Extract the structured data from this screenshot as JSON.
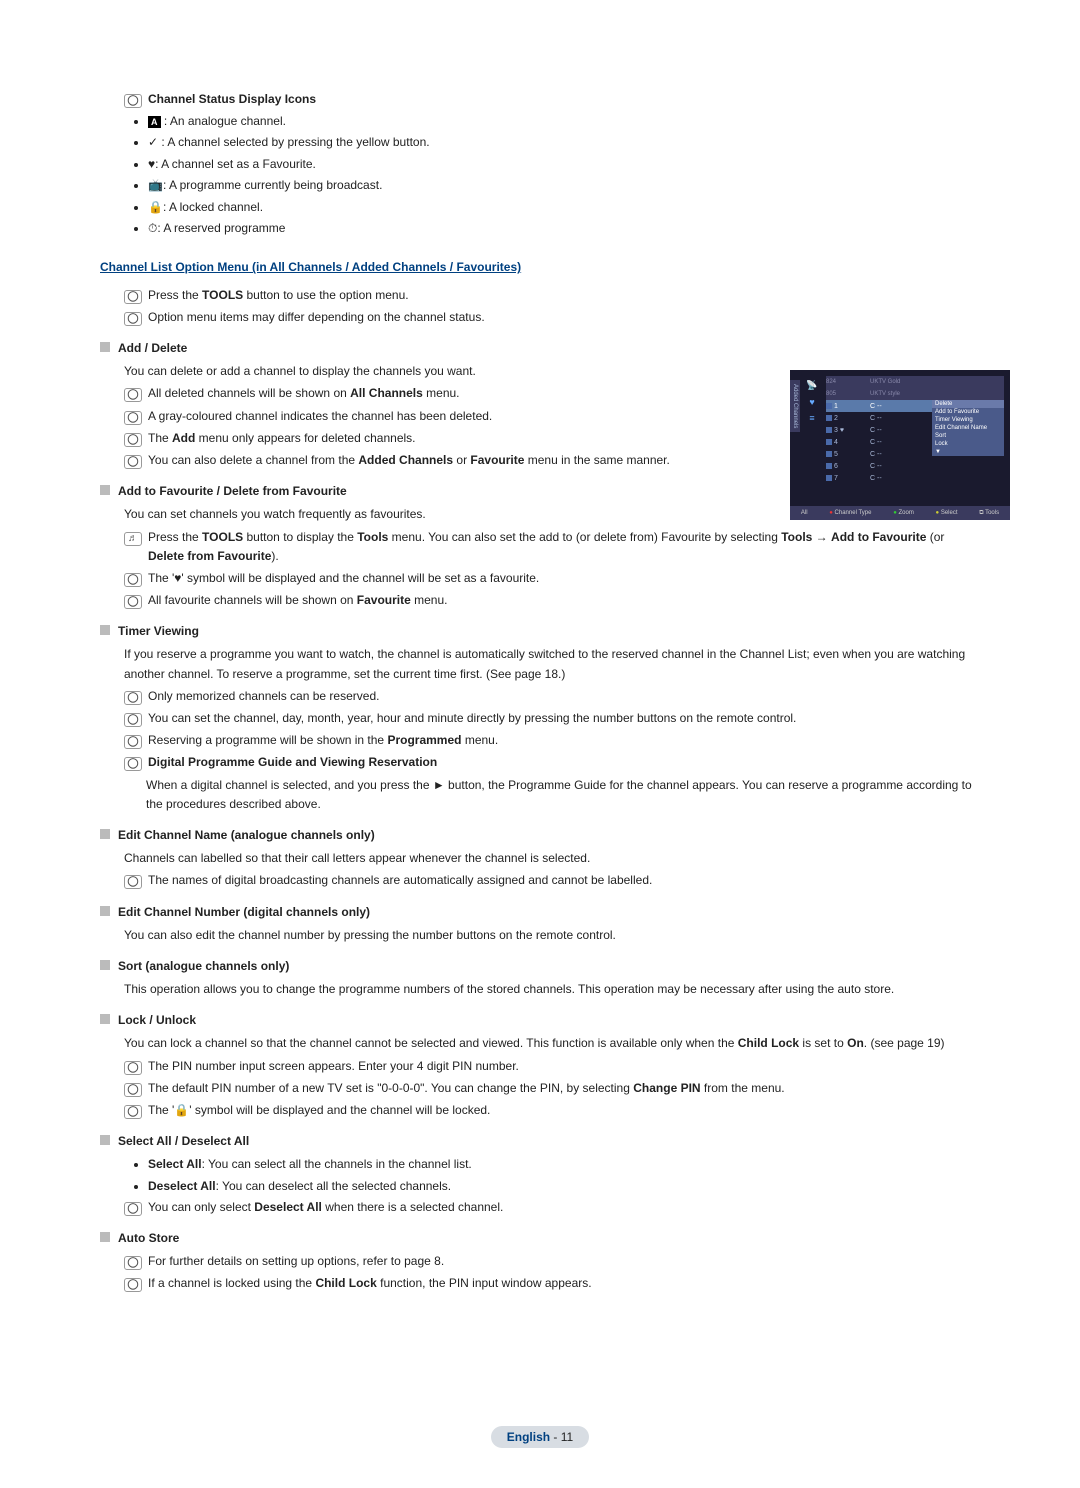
{
  "icons_section": {
    "title": "Channel Status Display Icons",
    "items": [
      {
        "icon": "A",
        "text": ": An analogue channel."
      },
      {
        "icon": "✓",
        "text": ": A channel selected by pressing the yellow button."
      },
      {
        "icon": "♥",
        "text": ": A channel set as a Favourite."
      },
      {
        "icon": "📺",
        "text": ": A programme currently being broadcast."
      },
      {
        "icon": "🔒",
        "text": ": A locked channel."
      },
      {
        "icon": "⏱",
        "text": ": A reserved programme"
      }
    ]
  },
  "main_title": "Channel List Option Menu (in All Channels / Added Channels / Favourites)",
  "main_notes": [
    "Press the TOOLS button to use the option menu.",
    "Option menu items may differ depending on the channel status."
  ],
  "sections": [
    {
      "head": "Add / Delete",
      "intro": "You can delete or add a channel to display the channels you want.",
      "notes": [
        "All deleted channels will be shown on All Channels menu.",
        "A gray-coloured channel indicates the channel has been deleted.",
        "The Add menu only appears for deleted channels.",
        "You can also delete a channel from the Added Channels or Favourite menu in the same manner."
      ]
    },
    {
      "head": "Add to Favourite / Delete from Favourite",
      "intro": "You can set channels you watch frequently as favourites.",
      "alt_note": "Press the TOOLS button to display the Tools menu. You can also set the add to (or delete from) Favourite by selecting Tools → Add to Favourite (or Delete from Favourite).",
      "notes": [
        "The '♥' symbol will be displayed and the channel will be set as a favourite.",
        "All favourite channels will be shown on Favourite menu."
      ]
    },
    {
      "head": "Timer Viewing",
      "intro": "If you reserve a programme you want to watch, the channel is automatically switched to the reserved channel in the Channel List; even when you are watching another channel. To reserve a programme, set the current time first. (See page 18.)",
      "notes": [
        "Only memorized channels can be reserved.",
        "You can set the channel, day, month, year, hour and minute directly by pressing the number buttons on the remote control.",
        "Reserving a programme will be shown in the Programmed menu."
      ],
      "bold_note": "Digital Programme Guide and Viewing Reservation",
      "bold_note_body": "When a digital channel is selected, and you press the ► button, the Programme Guide for the channel appears. You can reserve a programme according to the procedures described above."
    },
    {
      "head": "Edit Channel Name (analogue channels only)",
      "intro": "Channels can labelled so that their call letters appear whenever the channel is selected.",
      "notes": [
        "The names of digital broadcasting channels are automatically assigned and cannot be labelled."
      ]
    },
    {
      "head": "Edit Channel Number (digital channels only)",
      "intro": "You can also edit the channel number by pressing the number buttons on the remote control."
    },
    {
      "head": "Sort (analogue channels only)",
      "intro": "This operation allows you to change the programme numbers of the stored channels. This operation may be necessary after using the auto store."
    },
    {
      "head": "Lock / Unlock",
      "intro": "You can lock a channel so that the channel cannot be selected and viewed. This function is available only when the Child Lock is set to On. (see page 19)",
      "notes": [
        "The PIN number input screen appears. Enter your 4 digit PIN number.",
        "The default PIN number of a new TV set is \"0-0-0-0\". You can change the PIN, by selecting Change PIN from the menu.",
        "The '🔒' symbol will be displayed and the channel will be locked."
      ]
    },
    {
      "head": "Select All / Deselect All",
      "bullets": [
        "Select All: You can select all the channels in the channel list.",
        "Deselect All: You can deselect all the selected channels."
      ],
      "notes": [
        "You can only select Deselect All when there is a selected channel."
      ]
    },
    {
      "head": "Auto Store",
      "notes": [
        "For further details on setting up options, refer to page 8.",
        "If a channel is locked using the Child Lock function, the PIN input window appears."
      ]
    }
  ],
  "screenshot": {
    "vtab": "Added Channels",
    "header_row": [
      "824",
      "805",
      "UKTV Gold",
      "UKTV style"
    ],
    "rows": [
      {
        "n": "1",
        "c": "C --",
        "hl": true
      },
      {
        "n": "2",
        "c": "C --"
      },
      {
        "n": "3",
        "c": "C --",
        "mark": "♥"
      },
      {
        "n": "4",
        "c": "C --"
      },
      {
        "n": "5",
        "c": "C --"
      },
      {
        "n": "6",
        "c": "C --"
      },
      {
        "n": "7",
        "c": "C --"
      }
    ],
    "menu": [
      "Delete",
      "Add to Favourite",
      "Timer Viewing",
      "Edit Channel Name",
      "Sort",
      "Lock",
      "▼"
    ],
    "bottom": {
      "all": "All",
      "ct": "Channel Type",
      "zoom": "Zoom",
      "select": "Select",
      "tools": "Tools"
    }
  },
  "footer": {
    "lang": "English",
    "sep": " - ",
    "page": "11"
  }
}
